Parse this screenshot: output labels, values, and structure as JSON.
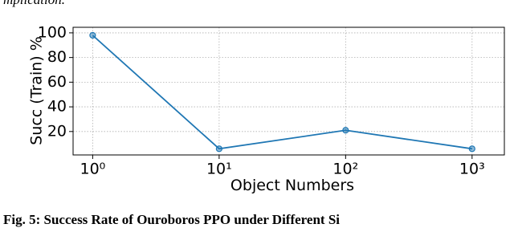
{
  "header_text": "mplication.",
  "chart_data": {
    "type": "line",
    "xlabel": "Object Numbers",
    "ylabel": "Succ (Train) %",
    "x": [
      1,
      10,
      100,
      1000
    ],
    "series": [
      {
        "name": "Succ (Train)",
        "color": "#1f77b4",
        "values": [
          98,
          6,
          21,
          6
        ]
      }
    ],
    "xscale": "log",
    "xlim": [
      0.7,
      1800
    ],
    "ylim": [
      1,
      104.5
    ],
    "xticks": [
      {
        "value": 1,
        "label": "10⁰"
      },
      {
        "value": 10,
        "label": "10¹"
      },
      {
        "value": 100,
        "label": "10²"
      },
      {
        "value": 1000,
        "label": "10³"
      }
    ],
    "yticks": [
      20,
      40,
      60,
      80,
      100
    ],
    "grid": true
  },
  "caption": "Fig. 5: Success Rate of Ouroboros PPO under Different Si"
}
